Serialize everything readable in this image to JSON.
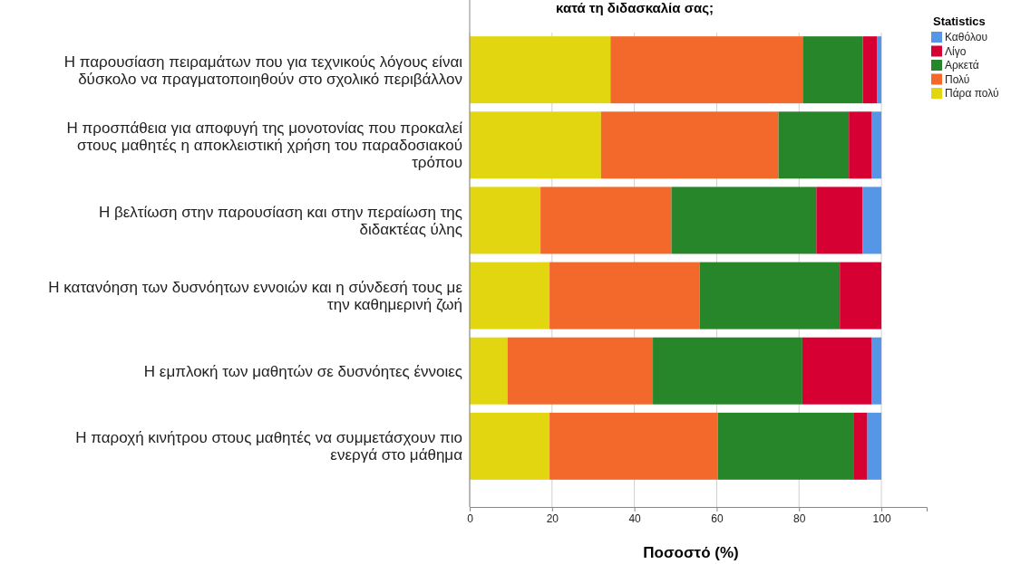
{
  "chart_data": {
    "type": "bar",
    "orientation": "horizontal",
    "stacked": true,
    "title": "κατά τη διδασκαλία σας;",
    "xlabel": "Ποσοστό (%)",
    "legend_title": "Statistics",
    "legend": "top right",
    "grid": "x",
    "categories": [
      "Η παρουσίαση πειραμάτων που για τεχνικούς λόγους είναι δύσκολο να πραγματοποιηθούν στο σχολικό περιβάλλον",
      "Η προσπάθεια για αποφυγή της μονοτονίας που προκαλεί στους μαθητές η αποκλειστική χρήση του παραδοσιακού τρόπου",
      "Η βελτίωση στην παρουσίαση και στην περαίωση της διδακτέας ύλης",
      "Η κατανόηση των δυσνόητων εννοιών και η σύνδεσή τους με την καθημερινή ζωή",
      "Η εμπλοκή των μαθητών σε δυσνόητες έννοιες",
      "Η παροχή κινήτρου στους μαθητές να συμμετάσχουν πιο ενεργά στο μάθημα"
    ],
    "series": [
      {
        "name": "Πάρα πολύ",
        "color": "#e1d60f",
        "values": [
          34.2,
          31.9,
          17.2,
          19.4,
          9.2,
          19.4
        ]
      },
      {
        "name": "Πολύ",
        "color": "#f3682b",
        "values": [
          46.7,
          43.1,
          31.8,
          36.5,
          35.3,
          40.9
        ]
      },
      {
        "name": "Αρκετά",
        "color": "#28862a",
        "values": [
          14.6,
          17.1,
          35.2,
          34.0,
          36.3,
          32.9
        ]
      },
      {
        "name": "Λίγο",
        "color": "#d60032",
        "values": [
          3.4,
          5.6,
          11.2,
          10.1,
          16.9,
          3.4
        ]
      },
      {
        "name": "Καθόλου",
        "color": "#5596e6",
        "values": [
          1.1,
          2.3,
          4.6,
          0,
          2.3,
          3.4
        ]
      }
    ],
    "xlim": [
      0,
      111
    ],
    "xticks": [
      0,
      20,
      40,
      60,
      80,
      100
    ]
  }
}
